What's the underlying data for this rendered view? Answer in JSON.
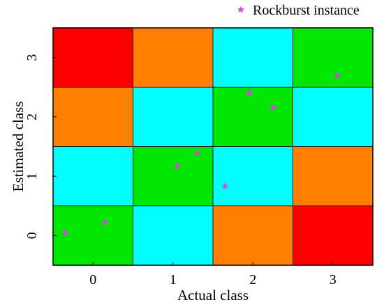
{
  "chart_data": {
    "type": "heatmap",
    "xlabel": "Actual class",
    "ylabel": "Estimated class",
    "x_categories": [
      "0",
      "1",
      "2",
      "3"
    ],
    "y_categories": [
      "0",
      "1",
      "2",
      "3"
    ],
    "grid_colors": {
      "0": {
        "0": "#00e600",
        "1": "#00ffff",
        "2": "#ff8000",
        "3": "#ff0000"
      },
      "1": {
        "0": "#00ffff",
        "1": "#00e600",
        "2": "#00ffff",
        "3": "#ff8000"
      },
      "2": {
        "0": "#ff8000",
        "1": "#00ffff",
        "2": "#00e600",
        "3": "#00ffff"
      },
      "3": {
        "0": "#ff0000",
        "1": "#ff8000",
        "2": "#00ffff",
        "3": "#00e600"
      }
    },
    "cells": [
      {
        "x": "0",
        "y": "0",
        "color": "#00e600"
      },
      {
        "x": "1",
        "y": "0",
        "color": "#00ffff"
      },
      {
        "x": "2",
        "y": "0",
        "color": "#ff8000"
      },
      {
        "x": "3",
        "y": "0",
        "color": "#ff0000"
      },
      {
        "x": "0",
        "y": "1",
        "color": "#00ffff"
      },
      {
        "x": "1",
        "y": "1",
        "color": "#00e600"
      },
      {
        "x": "2",
        "y": "1",
        "color": "#00ffff"
      },
      {
        "x": "3",
        "y": "1",
        "color": "#ff8000"
      },
      {
        "x": "0",
        "y": "2",
        "color": "#ff8000"
      },
      {
        "x": "1",
        "y": "2",
        "color": "#00ffff"
      },
      {
        "x": "2",
        "y": "2",
        "color": "#00e600"
      },
      {
        "x": "3",
        "y": "2",
        "color": "#00ffff"
      },
      {
        "x": "0",
        "y": "3",
        "color": "#ff0000"
      },
      {
        "x": "1",
        "y": "3",
        "color": "#ff8000"
      },
      {
        "x": "2",
        "y": "3",
        "color": "#00ffff"
      },
      {
        "x": "3",
        "y": "3",
        "color": "#00e600"
      }
    ],
    "series": [
      {
        "name": "Rockburst instance",
        "marker": "star",
        "color": "#e040e0",
        "points": [
          {
            "x": -0.35,
            "y": 0.05
          },
          {
            "x": 0.15,
            "y": 0.22
          },
          {
            "x": 1.05,
            "y": 1.17
          },
          {
            "x": 1.3,
            "y": 1.38
          },
          {
            "x": 1.65,
            "y": 0.83
          },
          {
            "x": 1.95,
            "y": 2.4
          },
          {
            "x": 2.25,
            "y": 2.16
          },
          {
            "x": 3.05,
            "y": 2.69
          }
        ]
      }
    ],
    "xlim": [
      -0.5,
      3.5
    ],
    "ylim": [
      -0.5,
      3.5
    ],
    "xticks": [
      0,
      1,
      2,
      3
    ],
    "yticks": [
      0,
      1,
      2,
      3
    ],
    "legend": {
      "position": "top-right"
    },
    "grid": false
  }
}
